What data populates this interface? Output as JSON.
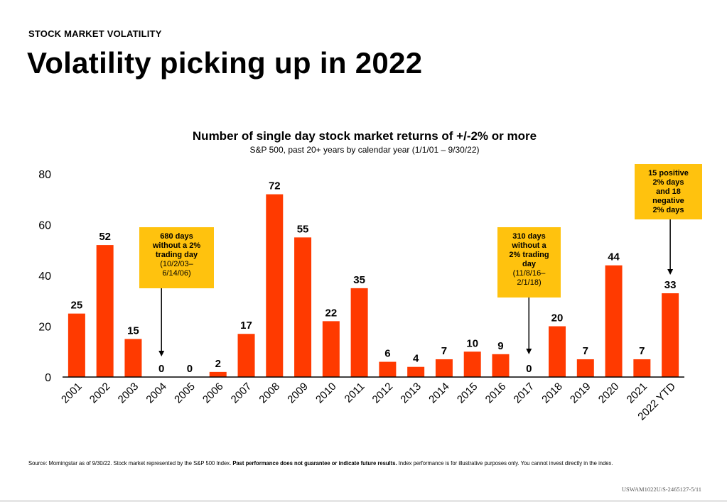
{
  "header": {
    "eyebrow": "STOCK MARKET VOLATILITY",
    "headline": "Volatility picking up in 2022"
  },
  "chart_data": {
    "type": "bar",
    "title": "Number of single day stock market returns of +/-2% or more",
    "subtitle": "S&P 500, past 20+ years by calendar year (1/1/01 – 9/30/22)",
    "categories": [
      "2001",
      "2002",
      "2003",
      "2004",
      "2005",
      "2006",
      "2007",
      "2008",
      "2009",
      "2010",
      "2011",
      "2012",
      "2013",
      "2014",
      "2015",
      "2016",
      "2017",
      "2018",
      "2019",
      "2020",
      "2021",
      "2022 YTD"
    ],
    "values": [
      25,
      52,
      15,
      0,
      0,
      2,
      17,
      72,
      55,
      22,
      35,
      6,
      4,
      7,
      10,
      9,
      0,
      20,
      7,
      44,
      7,
      33
    ],
    "ylim": [
      0,
      80
    ],
    "yticks": [
      0,
      20,
      40,
      60,
      80
    ],
    "xlabel": "",
    "ylabel": "",
    "grid": false,
    "bar_color": "#ff3a00",
    "annotations": [
      {
        "lines": [
          "680 days",
          "without a 2%",
          "trading day"
        ],
        "sublines": [
          "(10/2/03–",
          "6/14/06)"
        ],
        "points_to": "2004"
      },
      {
        "lines": [
          "310 days",
          "without a",
          "2% trading",
          "day"
        ],
        "sublines": [
          "(11/8/16–",
          "2/1/18)"
        ],
        "points_to": "2017"
      },
      {
        "lines": [
          "15 positive",
          "2% days",
          "and 18",
          "negative",
          "2% days"
        ],
        "sublines": [],
        "points_to": "2022 YTD"
      }
    ],
    "annotation_color": "#ffc20e"
  },
  "footer": {
    "source_pre": "Source: Morningstar as of 9/30/22. Stock market represented by the S&P 500 Index. ",
    "source_bold": "Past performance does not guarantee or indicate future results.",
    "source_post": " Index performance is for illustrative purposes only. You cannot invest directly in the index.",
    "code": "USWAM1022U/S-2465127-5/11"
  }
}
